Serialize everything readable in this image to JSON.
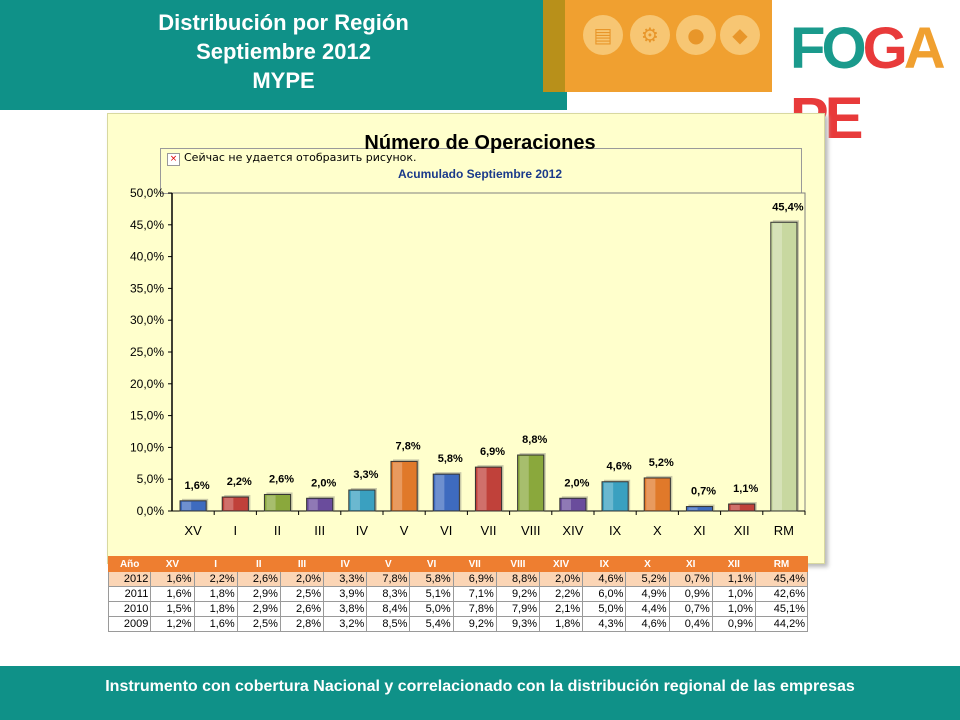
{
  "header": {
    "title_line1": "Distribución por Región",
    "title_line2": "Septiembre 2012",
    "title_line3": "MYPE"
  },
  "logo": {
    "text": "FOGAPE",
    "letters": [
      {
        "ch": "F",
        "color": "#1a9a8c"
      },
      {
        "ch": "O",
        "color": "#1a9a8c"
      },
      {
        "ch": "G",
        "color": "#e83a3a"
      },
      {
        "ch": "A",
        "color": "#f0a030"
      },
      {
        "ch": "P",
        "color": "#e83a3a"
      },
      {
        "ch": "E",
        "color": "#e83a3a"
      }
    ]
  },
  "broken_image": {
    "text": "Сейчас не удается отобразить рисунок."
  },
  "chart_data": {
    "type": "bar",
    "title": "Número de Operaciones",
    "subtitle": "Acumulado Septiembre 2012",
    "categories": [
      "XV",
      "I",
      "II",
      "III",
      "IV",
      "V",
      "VI",
      "VII",
      "VIII",
      "XIV",
      "IX",
      "X",
      "XI",
      "XII",
      "RM"
    ],
    "values": [
      1.6,
      2.2,
      2.6,
      2.0,
      3.3,
      7.8,
      5.8,
      6.9,
      8.8,
      2.0,
      4.6,
      5.2,
      0.7,
      1.1,
      45.4
    ],
    "data_labels": [
      "1,6%",
      "2,2%",
      "2,6%",
      "2,0%",
      "3,3%",
      "7,8%",
      "5,8%",
      "6,9%",
      "8,8%",
      "2,0%",
      "4,6%",
      "5,2%",
      "0,7%",
      "1,1%",
      "45,4%"
    ],
    "colors": [
      "#3e6bbf",
      "#c0413a",
      "#8aa83c",
      "#6a4c9c",
      "#3aa0c0",
      "#e0792a",
      "#3e6bbf",
      "#c0413a",
      "#8aa83c",
      "#6a4c9c",
      "#3aa0c0",
      "#e0792a",
      "#3e6bbf",
      "#c0413a",
      "#c8d8a0"
    ],
    "ylim": [
      0,
      50
    ],
    "yticks": [
      "0,0%",
      "5,0%",
      "10,0%",
      "15,0%",
      "20,0%",
      "25,0%",
      "30,0%",
      "35,0%",
      "40,0%",
      "45,0%",
      "50,0%"
    ],
    "ytick_values": [
      0,
      5,
      10,
      15,
      20,
      25,
      30,
      35,
      40,
      45,
      50
    ],
    "grid": false,
    "legend": "none"
  },
  "table": {
    "headers": [
      "Año",
      "XV",
      "I",
      "II",
      "III",
      "IV",
      "V",
      "VI",
      "VII",
      "VIII",
      "XIV",
      "IX",
      "X",
      "XI",
      "XII",
      "RM"
    ],
    "rows": [
      [
        "2012",
        "1,6%",
        "2,2%",
        "2,6%",
        "2,0%",
        "3,3%",
        "7,8%",
        "5,8%",
        "6,9%",
        "8,8%",
        "2,0%",
        "4,6%",
        "5,2%",
        "0,7%",
        "1,1%",
        "45,4%"
      ],
      [
        "2011",
        "1,6%",
        "1,8%",
        "2,9%",
        "2,5%",
        "3,9%",
        "8,3%",
        "5,1%",
        "7,1%",
        "9,2%",
        "2,2%",
        "6,0%",
        "4,9%",
        "0,9%",
        "1,0%",
        "42,6%"
      ],
      [
        "2010",
        "1,5%",
        "1,8%",
        "2,9%",
        "2,6%",
        "3,8%",
        "8,4%",
        "5,0%",
        "7,8%",
        "7,9%",
        "2,1%",
        "5,0%",
        "4,4%",
        "0,7%",
        "1,0%",
        "45,1%"
      ],
      [
        "2009",
        "1,2%",
        "1,6%",
        "2,5%",
        "2,8%",
        "3,2%",
        "8,5%",
        "5,4%",
        "9,2%",
        "9,3%",
        "1,8%",
        "4,3%",
        "4,6%",
        "0,4%",
        "0,9%",
        "44,2%"
      ]
    ]
  },
  "footer": {
    "text": "Instrumento con cobertura Nacional y correlacionado con  la distribución regional de las empresas"
  }
}
